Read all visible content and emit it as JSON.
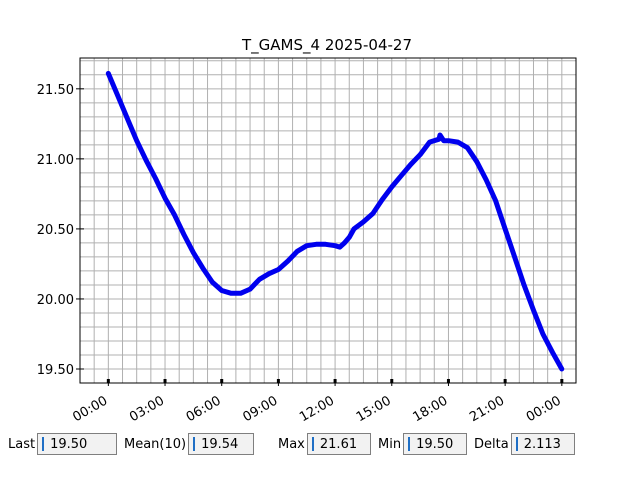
{
  "chart_data": {
    "type": "line",
    "title": "T_GAMS_4 2025-04-27",
    "xlabel": "",
    "ylabel": "",
    "x_tick_labels": [
      "00:00",
      "03:00",
      "06:00",
      "09:00",
      "12:00",
      "15:00",
      "18:00",
      "21:00",
      "00:00"
    ],
    "x_tick_hours": [
      0,
      3,
      6,
      9,
      12,
      15,
      18,
      21,
      24
    ],
    "y_tick_labels": [
      "19.50",
      "20.00",
      "20.50",
      "21.00",
      "21.50"
    ],
    "y_tick_values": [
      19.5,
      20.0,
      20.5,
      21.0,
      21.5
    ],
    "xlim_hours": [
      -1.5,
      24.75
    ],
    "ylim": [
      19.4,
      21.72
    ],
    "grid": true,
    "series_color": "#0000ee",
    "series": [
      {
        "x_hours": [
          0.0,
          0.5,
          1.0,
          1.5,
          2.0,
          2.5,
          3.0,
          3.5,
          4.0,
          4.5,
          5.0,
          5.5,
          6.0,
          6.5,
          7.0,
          7.5,
          8.0,
          8.5,
          9.0,
          9.5,
          10.0,
          10.5,
          11.0,
          11.5,
          12.0,
          12.25,
          12.5,
          12.75,
          13.0,
          13.5,
          14.0,
          14.5,
          15.0,
          15.5,
          16.0,
          16.5,
          17.0,
          17.5,
          17.55,
          17.75,
          18.0,
          18.5,
          19.0,
          19.5,
          20.0,
          20.5,
          21.0,
          21.5,
          22.0,
          22.5,
          23.0,
          23.5,
          24.0
        ],
        "values": [
          21.61,
          21.45,
          21.29,
          21.13,
          20.99,
          20.86,
          20.72,
          20.6,
          20.46,
          20.33,
          20.22,
          20.12,
          20.06,
          20.04,
          20.04,
          20.07,
          20.14,
          20.18,
          20.21,
          20.27,
          20.34,
          20.38,
          20.39,
          20.39,
          20.38,
          20.37,
          20.4,
          20.44,
          20.5,
          20.55,
          20.61,
          20.71,
          20.8,
          20.88,
          20.96,
          21.03,
          21.12,
          21.14,
          21.17,
          21.13,
          21.13,
          21.12,
          21.08,
          20.98,
          20.85,
          20.7,
          20.5,
          20.3,
          20.1,
          19.92,
          19.75,
          19.62,
          19.5
        ]
      }
    ]
  },
  "stats": {
    "last_label": "Last",
    "last_value": "19.50",
    "mean_label": "Mean(10)",
    "mean_value": "19.54",
    "max_label": "Max",
    "max_value": "21.61",
    "min_label": "Min",
    "min_value": "19.50",
    "delta_label": "Delta",
    "delta_value": "2.113"
  }
}
